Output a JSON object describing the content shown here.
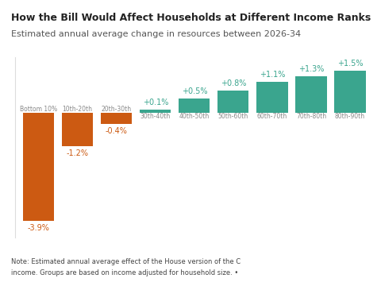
{
  "chart_data": {
    "type": "bar",
    "title": "How the Bill Would Affect Households at Different Income Ranks",
    "subtitle": "Estimated annual average change in resources between 2026-34",
    "categories": [
      "Bottom 10%",
      "10th-20th",
      "20th-30th",
      "30th-40th",
      "40th-50th",
      "50th-60th",
      "60th-70th",
      "70th-80th",
      "80th-90th"
    ],
    "values": [
      -3.9,
      -1.2,
      -0.4,
      0.1,
      0.5,
      0.8,
      1.1,
      1.3,
      1.5
    ],
    "value_labels": [
      "-3.9%",
      "-1.2%",
      "-0.4%",
      "+0.1%",
      "+0.5%",
      "+0.8%",
      "+1.1%",
      "+1.3%",
      "+1.5%"
    ],
    "colors": [
      "#cc5a12",
      "#cc5a12",
      "#cc5a12",
      "#3aa58e",
      "#3aa58e",
      "#3aa58e",
      "#3aa58e",
      "#3aa58e",
      "#3aa58e"
    ],
    "ylim": [
      -4.5,
      2.0
    ],
    "data_labels": true,
    "tick_labels": false,
    "grid": false,
    "note": [
      "Note: Estimated annual average effect of the House version of the C",
      "income. Groups are based on income adjusted for household size. •"
    ]
  }
}
